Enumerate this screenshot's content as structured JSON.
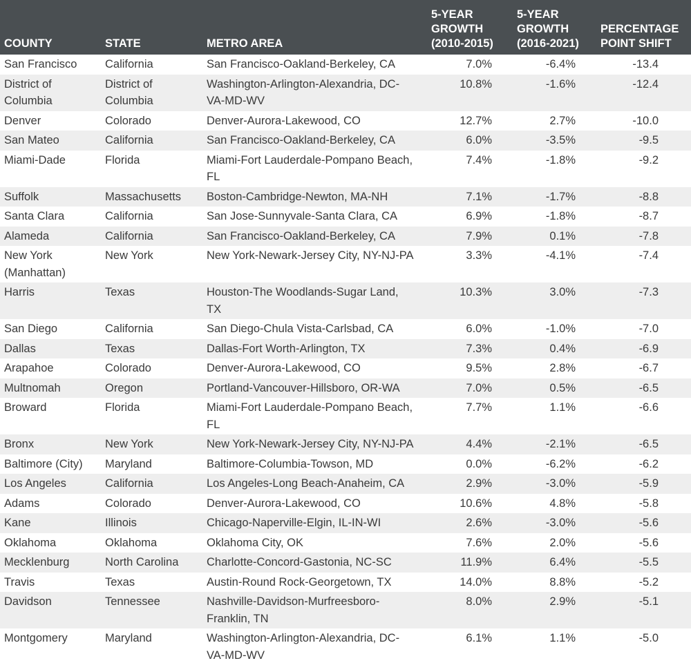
{
  "table": {
    "headers": {
      "county": "COUNTY",
      "state": "STATE",
      "metro": "METRO AREA",
      "growth1": "5-YEAR\nGROWTH\n(2010-2015)",
      "growth2": "5-YEAR\nGROWTH\n(2016-2021)",
      "shift": "PERCENTAGE\nPOINT SHIFT"
    },
    "rows": [
      {
        "county": "San Francisco",
        "state": "California",
        "metro": "San Francisco-Oakland-Berkeley, CA",
        "growth1": "7.0%",
        "growth2": "-6.4%",
        "shift": "-13.4"
      },
      {
        "county": "District of Columbia",
        "state": "District of Columbia",
        "metro": "Washington-Arlington-Alexandria, DC-VA-MD-WV",
        "growth1": "10.8%",
        "growth2": "-1.6%",
        "shift": "-12.4"
      },
      {
        "county": "Denver",
        "state": "Colorado",
        "metro": "Denver-Aurora-Lakewood, CO",
        "growth1": "12.7%",
        "growth2": "2.7%",
        "shift": "-10.0"
      },
      {
        "county": "San Mateo",
        "state": "California",
        "metro": "San Francisco-Oakland-Berkeley, CA",
        "growth1": "6.0%",
        "growth2": "-3.5%",
        "shift": "-9.5"
      },
      {
        "county": "Miami-Dade",
        "state": "Florida",
        "metro": "Miami-Fort Lauderdale-Pompano Beach, FL",
        "growth1": "7.4%",
        "growth2": "-1.8%",
        "shift": "-9.2"
      },
      {
        "county": "Suffolk",
        "state": "Massachusetts",
        "metro": "Boston-Cambridge-Newton, MA-NH",
        "growth1": "7.1%",
        "growth2": "-1.7%",
        "shift": "-8.8"
      },
      {
        "county": "Santa Clara",
        "state": "California",
        "metro": "San Jose-Sunnyvale-Santa Clara, CA",
        "growth1": "6.9%",
        "growth2": "-1.8%",
        "shift": "-8.7"
      },
      {
        "county": "Alameda",
        "state": "California",
        "metro": "San Francisco-Oakland-Berkeley, CA",
        "growth1": "7.9%",
        "growth2": "0.1%",
        "shift": "-7.8"
      },
      {
        "county": "New York (Manhattan)",
        "state": "New York",
        "metro": "New York-Newark-Jersey City, NY-NJ-PA",
        "growth1": "3.3%",
        "growth2": "-4.1%",
        "shift": "-7.4"
      },
      {
        "county": "Harris",
        "state": "Texas",
        "metro": "Houston-The Woodlands-Sugar Land, TX",
        "growth1": "10.3%",
        "growth2": "3.0%",
        "shift": "-7.3"
      },
      {
        "county": "San Diego",
        "state": "California",
        "metro": "San Diego-Chula Vista-Carlsbad, CA",
        "growth1": "6.0%",
        "growth2": "-1.0%",
        "shift": "-7.0"
      },
      {
        "county": "Dallas",
        "state": "Texas",
        "metro": "Dallas-Fort Worth-Arlington, TX",
        "growth1": "7.3%",
        "growth2": "0.4%",
        "shift": "-6.9"
      },
      {
        "county": "Arapahoe",
        "state": "Colorado",
        "metro": "Denver-Aurora-Lakewood, CO",
        "growth1": "9.5%",
        "growth2": "2.8%",
        "shift": "-6.7"
      },
      {
        "county": "Multnomah",
        "state": "Oregon",
        "metro": "Portland-Vancouver-Hillsboro, OR-WA",
        "growth1": "7.0%",
        "growth2": "0.5%",
        "shift": "-6.5"
      },
      {
        "county": "Broward",
        "state": "Florida",
        "metro": "Miami-Fort Lauderdale-Pompano Beach, FL",
        "growth1": "7.7%",
        "growth2": "1.1%",
        "shift": "-6.6"
      },
      {
        "county": "Bronx",
        "state": "New York",
        "metro": "New York-Newark-Jersey City, NY-NJ-PA",
        "growth1": "4.4%",
        "growth2": "-2.1%",
        "shift": "-6.5"
      },
      {
        "county": "Baltimore (City)",
        "state": "Maryland",
        "metro": "Baltimore-Columbia-Towson, MD",
        "growth1": "0.0%",
        "growth2": "-6.2%",
        "shift": "-6.2"
      },
      {
        "county": "Los Angeles",
        "state": "California",
        "metro": "Los Angeles-Long Beach-Anaheim, CA",
        "growth1": "2.9%",
        "growth2": "-3.0%",
        "shift": "-5.9"
      },
      {
        "county": "Adams",
        "state": "Colorado",
        "metro": "Denver-Aurora-Lakewood, CO",
        "growth1": "10.6%",
        "growth2": "4.8%",
        "shift": "-5.8"
      },
      {
        "county": "Kane",
        "state": "Illinois",
        "metro": "Chicago-Naperville-Elgin, IL-IN-WI",
        "growth1": "2.6%",
        "growth2": "-3.0%",
        "shift": "-5.6"
      },
      {
        "county": "Oklahoma",
        "state": "Oklahoma",
        "metro": "Oklahoma City, OK",
        "growth1": "7.6%",
        "growth2": "2.0%",
        "shift": "-5.6"
      },
      {
        "county": "Mecklenburg",
        "state": "North Carolina",
        "metro": "Charlotte-Concord-Gastonia, NC-SC",
        "growth1": "11.9%",
        "growth2": "6.4%",
        "shift": "-5.5"
      },
      {
        "county": "Travis",
        "state": "Texas",
        "metro": "Austin-Round Rock-Georgetown, TX",
        "growth1": "14.0%",
        "growth2": "8.8%",
        "shift": "-5.2"
      },
      {
        "county": "Davidson",
        "state": "Tennessee",
        "metro": "Nashville-Davidson-Murfreesboro-Franklin, TN",
        "growth1": "8.0%",
        "growth2": "2.9%",
        "shift": "-5.1"
      },
      {
        "county": "Montgomery",
        "state": "Maryland",
        "metro": "Washington-Arlington-Alexandria, DC-VA-MD-WV",
        "growth1": "6.1%",
        "growth2": "1.1%",
        "shift": "-5.0"
      }
    ]
  }
}
